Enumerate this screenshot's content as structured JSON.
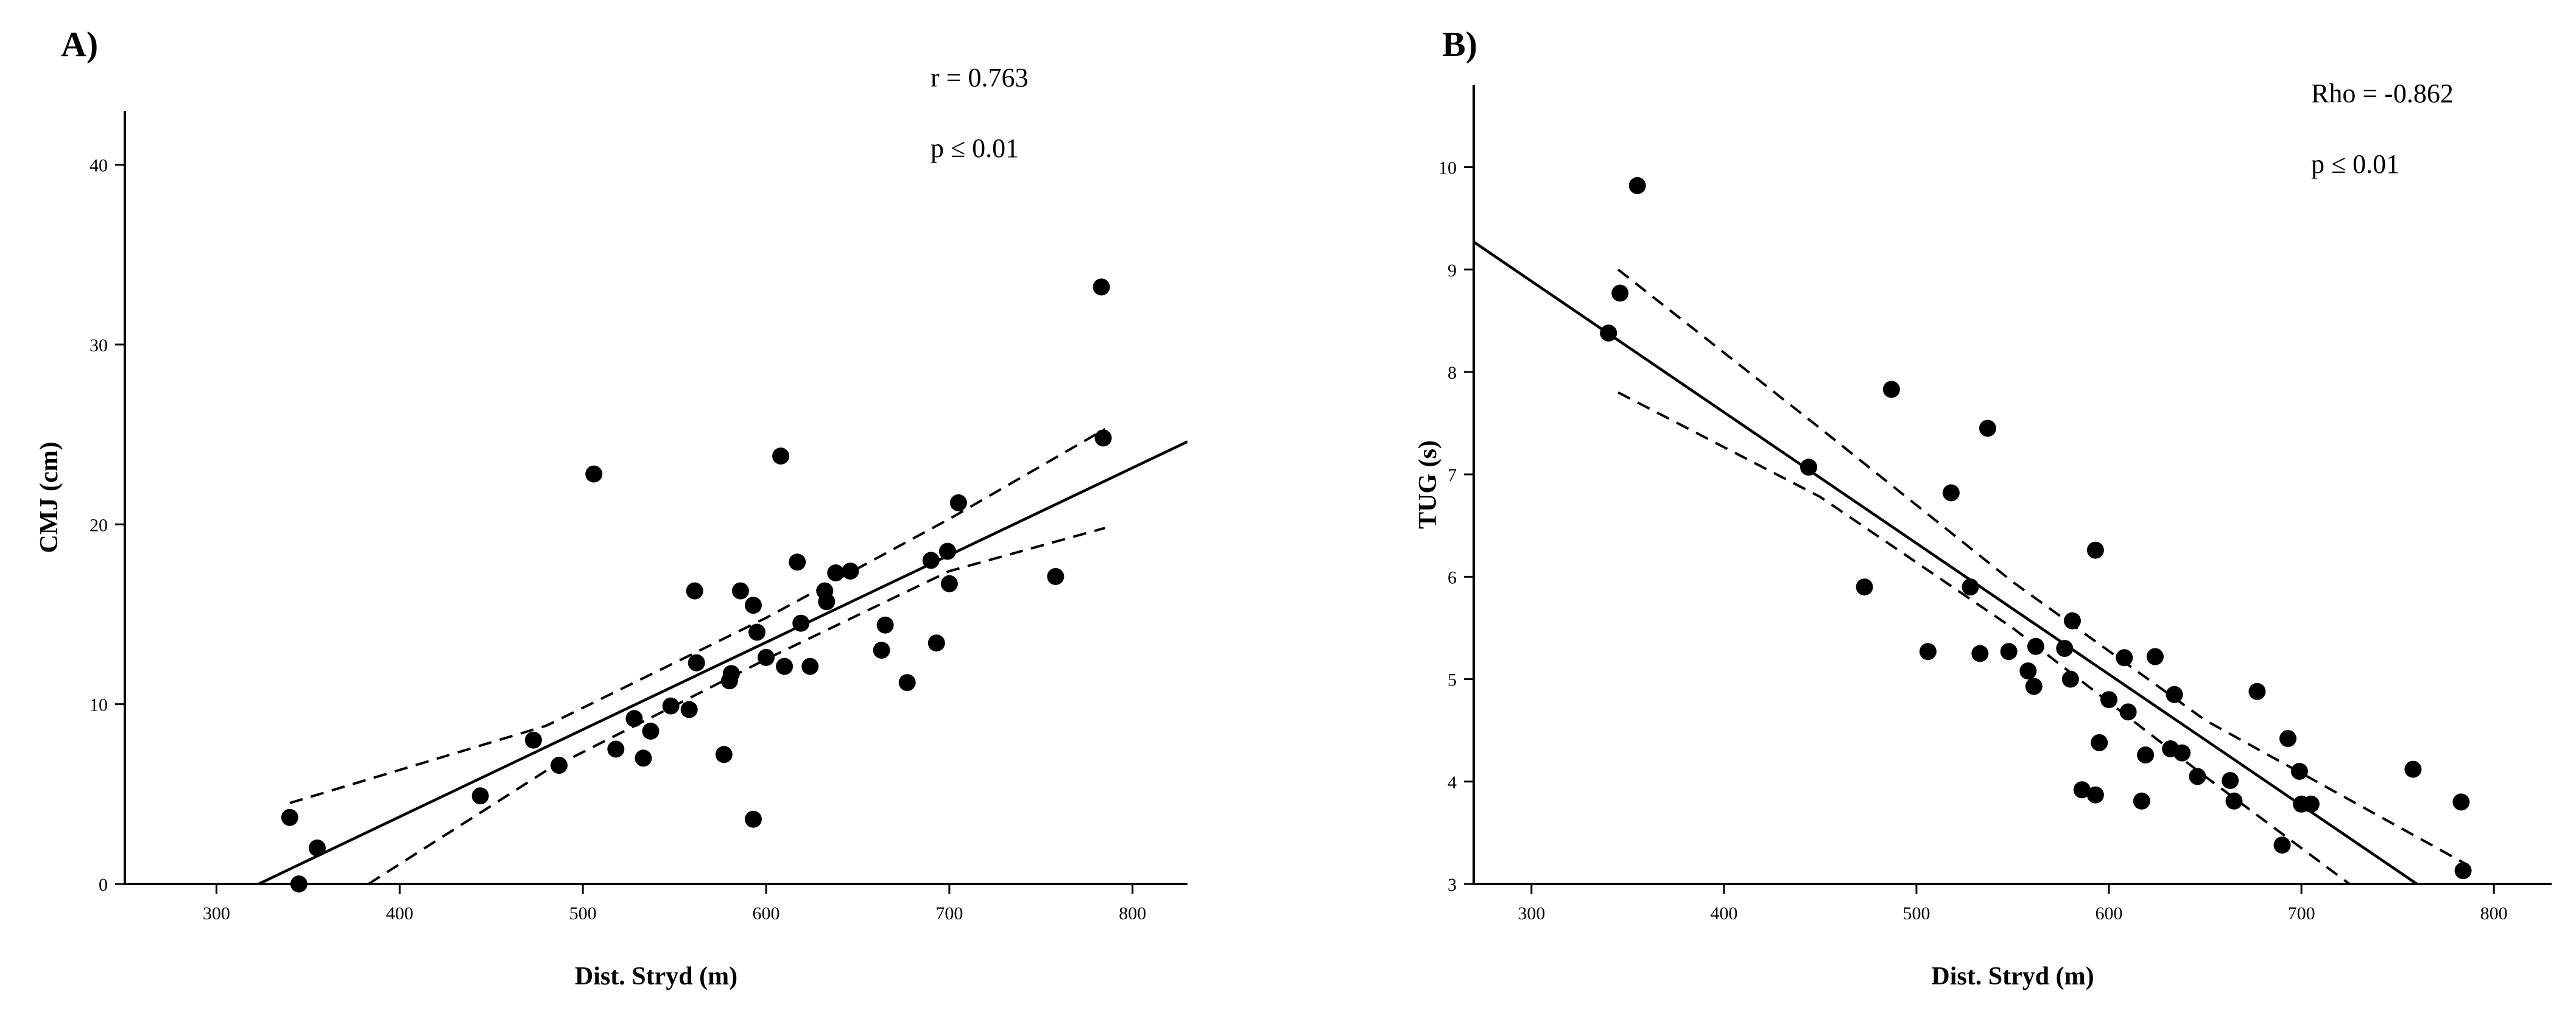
{
  "chart_data": [
    {
      "type": "scatter",
      "panel": "A)",
      "xlabel": "Dist. Stryd (m)",
      "ylabel": "CMJ (cm)",
      "annotations": [
        "r = 0.763",
        "p ≤ 0.01"
      ],
      "xlim": [
        250,
        830
      ],
      "ylim": [
        0,
        43
      ],
      "xticks": [
        300,
        400,
        500,
        600,
        700,
        800
      ],
      "yticks": [
        0,
        10,
        20,
        30,
        40
      ],
      "points": [
        [
          340,
          3.7
        ],
        [
          345,
          0
        ],
        [
          355,
          2
        ],
        [
          444,
          4.9
        ],
        [
          473,
          8.0
        ],
        [
          487,
          6.6
        ],
        [
          506,
          22.8
        ],
        [
          518,
          7.5
        ],
        [
          528,
          9.2
        ],
        [
          533,
          7.0
        ],
        [
          537,
          8.5
        ],
        [
          548,
          9.9
        ],
        [
          558,
          9.7
        ],
        [
          561,
          16.3
        ],
        [
          562,
          12.3
        ],
        [
          577,
          7.2
        ],
        [
          580,
          11.3
        ],
        [
          581,
          11.7
        ],
        [
          586,
          16.3
        ],
        [
          593,
          15.5
        ],
        [
          593,
          3.6
        ],
        [
          595,
          14.0
        ],
        [
          600,
          12.6
        ],
        [
          608,
          23.8
        ],
        [
          610,
          12.1
        ],
        [
          617,
          17.9
        ],
        [
          619,
          14.5
        ],
        [
          624,
          12.1
        ],
        [
          632,
          16.3
        ],
        [
          633,
          15.7
        ],
        [
          638,
          17.3
        ],
        [
          646,
          17.4
        ],
        [
          663,
          13.0
        ],
        [
          665,
          14.4
        ],
        [
          677,
          11.2
        ],
        [
          690,
          18.0
        ],
        [
          693,
          13.4
        ],
        [
          699,
          18.5
        ],
        [
          700,
          16.7
        ],
        [
          705,
          21.2
        ],
        [
          758,
          17.1
        ],
        [
          783,
          33.2
        ],
        [
          784,
          24.8
        ]
      ],
      "fit_line": [
        [
          323,
          0
        ],
        [
          830,
          24.6
        ]
      ],
      "ci_upper": [
        [
          340,
          4.5
        ],
        [
          480,
          8.8
        ],
        [
          600,
          14.8
        ],
        [
          700,
          20.3
        ],
        [
          785,
          25.3
        ]
      ],
      "ci_lower": [
        [
          383,
          0
        ],
        [
          480,
          6.3
        ],
        [
          600,
          12.5
        ],
        [
          700,
          17.4
        ],
        [
          785,
          19.8
        ]
      ]
    },
    {
      "type": "scatter",
      "panel": "B)",
      "xlabel": "Dist. Stryd (m)",
      "ylabel": "TUG (s)",
      "annotations": [
        "Rho = -0.862",
        "p ≤ 0.01"
      ],
      "xlim": [
        270,
        830
      ],
      "ylim": [
        3,
        10.8
      ],
      "xticks": [
        300,
        400,
        500,
        600,
        700,
        800
      ],
      "yticks": [
        3,
        4,
        5,
        6,
        7,
        8,
        9,
        10
      ],
      "points": [
        [
          340,
          8.38
        ],
        [
          346,
          8.77
        ],
        [
          355,
          9.82
        ],
        [
          444,
          7.07
        ],
        [
          473,
          5.9
        ],
        [
          487,
          7.83
        ],
        [
          506,
          5.27
        ],
        [
          518,
          6.82
        ],
        [
          528,
          5.9
        ],
        [
          533,
          5.25
        ],
        [
          537,
          7.45
        ],
        [
          548,
          5.27
        ],
        [
          558,
          5.08
        ],
        [
          561,
          4.93
        ],
        [
          562,
          5.32
        ],
        [
          577,
          5.3
        ],
        [
          580,
          5.0
        ],
        [
          581,
          5.57
        ],
        [
          586,
          3.92
        ],
        [
          593,
          6.26
        ],
        [
          593,
          3.87
        ],
        [
          595,
          4.38
        ],
        [
          600,
          4.8
        ],
        [
          608,
          5.21
        ],
        [
          610,
          4.68
        ],
        [
          617,
          3.81
        ],
        [
          619,
          4.26
        ],
        [
          624,
          5.22
        ],
        [
          632,
          4.32
        ],
        [
          634,
          4.85
        ],
        [
          638,
          4.28
        ],
        [
          646,
          4.05
        ],
        [
          663,
          4.01
        ],
        [
          665,
          3.81
        ],
        [
          677,
          4.88
        ],
        [
          690,
          3.38
        ],
        [
          693,
          4.42
        ],
        [
          699,
          4.1
        ],
        [
          700,
          3.78
        ],
        [
          705,
          3.78
        ],
        [
          758,
          4.12
        ],
        [
          783,
          3.8
        ],
        [
          784,
          3.13
        ]
      ],
      "fit_line": [
        [
          270,
          9.27
        ],
        [
          760,
          3.0
        ]
      ],
      "ci_upper": [
        [
          345,
          9.0
        ],
        [
          450,
          7.45
        ],
        [
          550,
          5.95
        ],
        [
          650,
          4.6
        ],
        [
          785,
          3.2
        ]
      ],
      "ci_lower": [
        [
          345,
          7.8
        ],
        [
          450,
          6.78
        ],
        [
          550,
          5.5
        ],
        [
          650,
          4.05
        ],
        [
          725,
          3.0
        ]
      ]
    }
  ]
}
